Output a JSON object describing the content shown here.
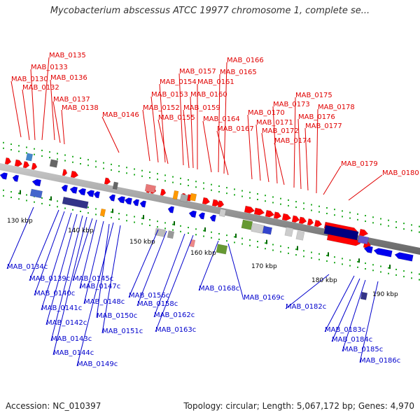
{
  "title": "Mycobacterium abscessus ATCC 19977 chromosome 1, complete se...",
  "footer": {
    "accession": "Accession: NC_010397",
    "stats": "Topology: circular; Length: 5,067,172 bp; Genes: 4,970"
  },
  "colors": {
    "forward_label": "#e00000",
    "reverse_label": "#0000cc",
    "forward_gene": "#ff0000",
    "reverse_gene": "#0000ee",
    "backbone": "#888888",
    "tick_major": "#006600",
    "tick_minor": "#22aa22"
  },
  "scale_labels": [
    "130 kbp",
    "140 kbp",
    "150 kbp",
    "160 kbp",
    "170 kbp",
    "180 kbp",
    "190 kbp"
  ],
  "forward_genes": [
    "MAB_0130",
    "MAB_0132",
    "MAB_0133",
    "MAB_0135",
    "MAB_0136",
    "MAB_0137",
    "MAB_0138",
    "MAB_0146",
    "MAB_0152",
    "MAB_0153",
    "MAB_0154",
    "MAB_0155",
    "MAB_0157",
    "MAB_0159",
    "MAB_0160",
    "MAB_0161",
    "MAB_0164",
    "MAB_0165",
    "MAB_0166",
    "MAB_0167",
    "MAB_0170",
    "MAB_0171",
    "MAB_0172",
    "MAB_0173",
    "MAB_0174",
    "MAB_0175",
    "MAB_0176",
    "MAB_0177",
    "MAB_0178",
    "MAB_0179",
    "MAB_0180"
  ],
  "reverse_genes": [
    "MAB_0134c",
    "MAB_0139c",
    "MAB_0140c",
    "MAB_0141c",
    "MAB_0142c",
    "MAB_0143c",
    "MAB_0144c",
    "MAB_0145c",
    "MAB_0147c",
    "MAB_0148c",
    "MAB_0149c",
    "MAB_0150c",
    "MAB_0151c",
    "MAB_0156c",
    "MAB_0158c",
    "MAB_0162c",
    "MAB_0163c",
    "MAB_0168c",
    "MAB_0169c",
    "MAB_0182c",
    "MAB_0183c",
    "MAB_0184c",
    "MAB_0185c",
    "MAB_0186c"
  ]
}
